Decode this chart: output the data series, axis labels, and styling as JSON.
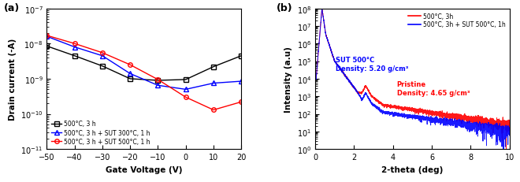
{
  "panel_a": {
    "title": "(a)",
    "xlabel": "Gate Voltage (V)",
    "ylabel": "Drain current (-A)",
    "xlim": [
      -50,
      20
    ],
    "ylim_log": [
      -11,
      -7
    ],
    "xticks": [
      -50,
      -40,
      -30,
      -20,
      -10,
      0,
      10,
      20
    ],
    "series": [
      {
        "label": "500°C, 3 h",
        "color": "black",
        "marker": "s",
        "x": [
          -50,
          -40,
          -30,
          -20,
          -10,
          0,
          10,
          20
        ],
        "y": [
          8.5e-09,
          4.5e-09,
          2.3e-09,
          1e-09,
          9e-10,
          9.5e-10,
          2.2e-09,
          4.5e-09
        ]
      },
      {
        "label": "500°C, 3 h + SUT 300°C, 1 h",
        "color": "blue",
        "marker": "^",
        "x": [
          -50,
          -40,
          -30,
          -20,
          -10,
          0,
          10,
          20
        ],
        "y": [
          1.6e-08,
          8e-09,
          4.5e-09,
          1.4e-09,
          6.5e-10,
          5e-10,
          7.5e-10,
          8.5e-10
        ]
      },
      {
        "label": "500°C, 3 h + SUT 500°C, 1 h",
        "color": "red",
        "marker": "o",
        "x": [
          -50,
          -40,
          -30,
          -20,
          -10,
          0,
          10,
          20
        ],
        "y": [
          1.7e-08,
          1e-08,
          5.5e-09,
          2.5e-09,
          9.5e-10,
          3e-10,
          1.3e-10,
          2.2e-10
        ]
      }
    ]
  },
  "panel_b": {
    "title": "(b)",
    "xlabel": "2-theta (deg)",
    "ylabel": "Intensity (a.u)",
    "xlim": [
      0,
      10
    ],
    "ylim_log": [
      0,
      8
    ],
    "xticks": [
      0,
      2,
      4,
      6,
      8,
      10
    ],
    "annotation_blue": "SUT 500°C\nDensity: 5.20 g/cm³",
    "annotation_red": "Pristine\nDensity: 4.65 g/cm³",
    "legend_labels": [
      "500°C, 3h",
      "500°C, 3h + SUT 500°C, 1h"
    ],
    "legend_colors": [
      "red",
      "blue"
    ]
  },
  "background_color": "white"
}
